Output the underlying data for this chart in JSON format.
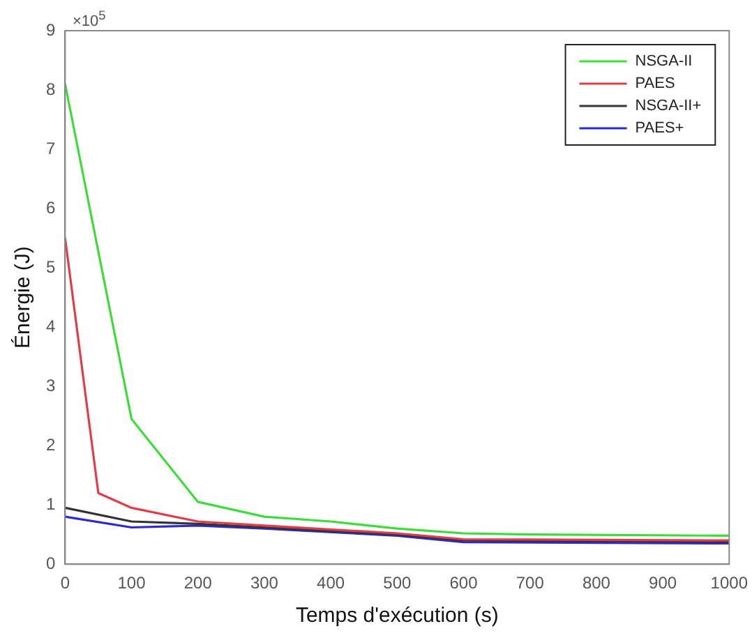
{
  "chart_data": {
    "type": "line",
    "xlabel": "Temps d'exécution (s)",
    "ylabel": "Énergie (J)",
    "annotations": [
      "×10$^{5}$"
    ],
    "xlim": [
      0,
      1000
    ],
    "xticks": [
      0,
      100,
      200,
      300,
      400,
      500,
      600,
      700,
      800,
      900,
      1000
    ],
    "ylim": [
      0,
      9
    ],
    "yticks": [
      0,
      1,
      2,
      3,
      4,
      5,
      6,
      7,
      8,
      9
    ],
    "legend": "top right",
    "grid": false,
    "marker": "none",
    "line_style": "solid",
    "series": [
      {
        "name": "NSGA-II",
        "color": "#3ddc3d",
        "x": [
          0,
          100,
          200,
          300,
          400,
          500,
          600,
          700,
          1000
        ],
        "values": [
          8.1,
          2.45,
          1.05,
          0.8,
          0.72,
          0.6,
          0.52,
          0.5,
          0.48
        ]
      },
      {
        "name": "PAES",
        "color": "#e03c4a",
        "x": [
          0,
          50,
          100,
          200,
          300,
          500,
          600,
          1000
        ],
        "values": [
          5.5,
          1.2,
          0.95,
          0.72,
          0.65,
          0.52,
          0.42,
          0.4
        ]
      },
      {
        "name": "NSGA-II+",
        "color": "#333333",
        "x": [
          0,
          100,
          200,
          300,
          500,
          600,
          1000
        ],
        "values": [
          0.95,
          0.72,
          0.68,
          0.62,
          0.5,
          0.4,
          0.38
        ]
      },
      {
        "name": "PAES+",
        "color": "#2a2ad0",
        "x": [
          0,
          100,
          200,
          300,
          500,
          600,
          1000
        ],
        "values": [
          0.8,
          0.62,
          0.65,
          0.6,
          0.48,
          0.37,
          0.35
        ]
      }
    ]
  }
}
